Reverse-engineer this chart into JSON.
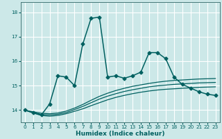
{
  "xlabel": "Humidex (Indice chaleur)",
  "bg_color": "#cce8e8",
  "grid_color": "#ffffff",
  "line_color": "#006060",
  "xlim": [
    -0.5,
    23.5
  ],
  "ylim": [
    13.5,
    18.4
  ],
  "yticks": [
    14,
    15,
    16,
    17,
    18
  ],
  "xticks": [
    0,
    1,
    2,
    3,
    4,
    5,
    6,
    7,
    8,
    9,
    10,
    11,
    12,
    13,
    14,
    15,
    16,
    17,
    18,
    19,
    20,
    21,
    22,
    23
  ],
  "series_main": {
    "x": [
      0,
      1,
      2,
      3,
      4,
      5,
      6,
      7,
      8,
      9,
      10,
      11,
      12,
      13,
      14,
      15,
      16,
      17,
      18,
      19,
      20,
      21,
      22,
      23
    ],
    "y": [
      14.0,
      13.9,
      13.8,
      14.25,
      15.4,
      15.35,
      15.0,
      16.7,
      17.75,
      17.8,
      15.35,
      15.4,
      15.3,
      15.4,
      15.55,
      16.35,
      16.35,
      16.1,
      15.35,
      15.05,
      14.9,
      14.75,
      14.65,
      14.6
    ]
  },
  "series_smooth": [
    [
      14.0,
      13.88,
      13.78,
      13.75,
      13.78,
      13.85,
      13.95,
      14.05,
      14.18,
      14.3,
      14.42,
      14.52,
      14.6,
      14.67,
      14.73,
      14.78,
      14.82,
      14.85,
      14.87,
      14.89,
      14.91,
      14.93,
      14.94,
      14.95
    ],
    [
      14.0,
      13.9,
      13.82,
      13.8,
      13.83,
      13.9,
      14.02,
      14.15,
      14.3,
      14.45,
      14.57,
      14.67,
      14.76,
      14.83,
      14.89,
      14.95,
      14.99,
      15.02,
      15.05,
      15.07,
      15.09,
      15.11,
      15.12,
      15.13
    ],
    [
      14.0,
      13.93,
      13.87,
      13.85,
      13.88,
      13.96,
      14.08,
      14.23,
      14.4,
      14.56,
      14.69,
      14.8,
      14.89,
      14.97,
      15.03,
      15.09,
      15.14,
      15.18,
      15.21,
      15.23,
      15.25,
      15.27,
      15.28,
      15.29
    ]
  ],
  "marker": "D",
  "markersize": 2.5,
  "linewidth_main": 1.1,
  "linewidth_smooth": 0.9
}
